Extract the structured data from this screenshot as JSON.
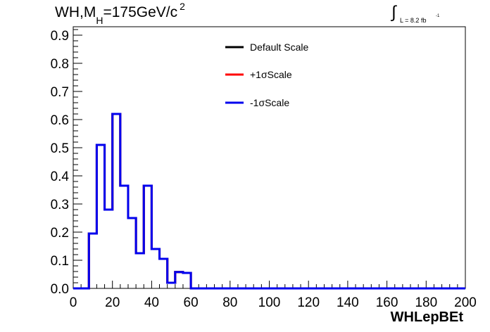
{
  "title": {
    "prefix": "WH,M",
    "subscript": "H",
    "value": "=175GeV/c",
    "superscript": "2"
  },
  "luminosity": {
    "integral_symbol": "∫",
    "text": "L = 8.2 fb",
    "exponent": "-1"
  },
  "chart_data": {
    "type": "histogram",
    "xlabel": "WHLepBEt",
    "ylabel": "",
    "xlim": [
      0,
      200
    ],
    "ylim": [
      0,
      0.93
    ],
    "xticks": [
      0,
      20,
      40,
      60,
      80,
      100,
      120,
      140,
      160,
      180,
      200
    ],
    "yticks": [
      0.0,
      0.1,
      0.2,
      0.3,
      0.4,
      0.5,
      0.6,
      0.7,
      0.8,
      0.9
    ],
    "bin_edges": [
      0,
      4,
      8,
      12,
      16,
      20,
      24,
      28,
      32,
      36,
      40,
      44,
      48,
      52,
      56,
      60,
      64,
      68,
      72,
      76,
      80,
      84,
      88,
      92,
      96,
      100,
      104,
      108,
      112,
      116,
      120,
      124,
      128,
      132,
      136,
      140,
      144,
      148,
      152,
      156,
      160,
      164,
      168,
      172,
      176,
      180,
      184,
      188,
      192,
      196,
      200
    ],
    "series": [
      {
        "name": "Default Scale",
        "color": "#000000",
        "values": [
          0,
          0,
          0.195,
          0.51,
          0.28,
          0.62,
          0.365,
          0.25,
          0.125,
          0.365,
          0.14,
          0.105,
          0.02,
          0.058,
          0.055,
          0,
          0,
          0,
          0,
          0,
          0,
          0,
          0,
          0,
          0,
          0,
          0,
          0,
          0,
          0,
          0,
          0,
          0,
          0,
          0,
          0,
          0,
          0,
          0,
          0,
          0,
          0,
          0,
          0,
          0,
          0,
          0,
          0,
          0,
          0
        ]
      },
      {
        "name": "+1σScale",
        "color": "#ff0000",
        "values": [
          0,
          0,
          0.195,
          0.51,
          0.28,
          0.62,
          0.365,
          0.25,
          0.125,
          0.365,
          0.14,
          0.105,
          0.02,
          0.058,
          0.055,
          0,
          0,
          0,
          0,
          0,
          0,
          0,
          0,
          0,
          0,
          0,
          0,
          0,
          0,
          0,
          0,
          0,
          0,
          0,
          0,
          0,
          0,
          0,
          0,
          0,
          0,
          0,
          0,
          0,
          0,
          0,
          0,
          0,
          0,
          0
        ]
      },
      {
        "name": "-1σScale",
        "color": "#0000ee",
        "values": [
          0,
          0,
          0.195,
          0.51,
          0.28,
          0.62,
          0.365,
          0.25,
          0.125,
          0.365,
          0.14,
          0.105,
          0.02,
          0.058,
          0.055,
          0,
          0,
          0,
          0,
          0,
          0,
          0,
          0,
          0,
          0,
          0,
          0,
          0,
          0,
          0,
          0,
          0,
          0,
          0,
          0,
          0,
          0,
          0,
          0,
          0,
          0,
          0,
          0,
          0,
          0,
          0,
          0,
          0,
          0,
          0
        ]
      }
    ],
    "legend_position": "top-center",
    "grid": false
  }
}
